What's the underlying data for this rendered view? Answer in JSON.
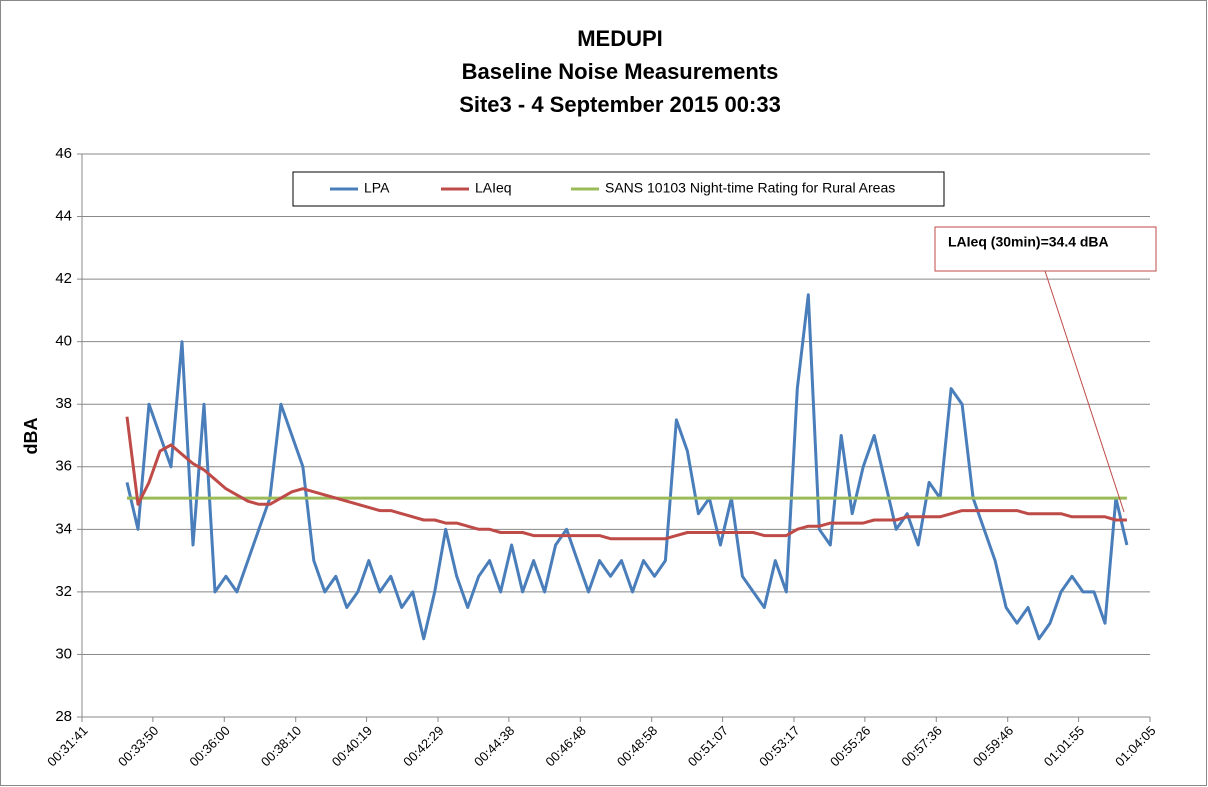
{
  "chart_data": {
    "type": "line",
    "title": [
      "MEDUPI",
      "Baseline Noise Measurements",
      "Site3 - 4 September 2015 00:33"
    ],
    "y_label": "dBA",
    "annotation": "LAIeq (30min)=34.4 dBA",
    "x": [
      "00:33:03",
      "00:33:23",
      "00:33:43",
      "00:34:03",
      "00:34:23",
      "00:34:43",
      "00:35:03",
      "00:35:23",
      "00:35:43",
      "00:36:03",
      "00:36:23",
      "00:36:43",
      "00:37:03",
      "00:37:23",
      "00:37:43",
      "00:38:03",
      "00:38:23",
      "00:38:43",
      "00:39:03",
      "00:39:23",
      "00:39:43",
      "00:40:03",
      "00:40:23",
      "00:40:43",
      "00:41:03",
      "00:41:23",
      "00:41:43",
      "00:42:03",
      "00:42:23",
      "00:42:43",
      "00:43:03",
      "00:43:23",
      "00:43:43",
      "00:44:03",
      "00:44:23",
      "00:44:43",
      "00:45:03",
      "00:45:23",
      "00:45:43",
      "00:46:03",
      "00:46:23",
      "00:46:43",
      "00:47:03",
      "00:47:23",
      "00:47:43",
      "00:48:03",
      "00:48:23",
      "00:48:43",
      "00:49:03",
      "00:49:23",
      "00:49:43",
      "00:50:03",
      "00:50:23",
      "00:50:43",
      "00:51:03",
      "00:51:23",
      "00:51:43",
      "00:52:03",
      "00:52:23",
      "00:52:43",
      "00:53:03",
      "00:53:23",
      "00:53:43",
      "00:54:03",
      "00:54:23",
      "00:54:43",
      "00:55:03",
      "00:55:23",
      "00:55:43",
      "00:56:03",
      "00:56:23",
      "00:56:43",
      "00:57:03",
      "00:57:23",
      "00:57:43",
      "00:58:03",
      "00:58:23",
      "00:58:43",
      "00:59:03",
      "00:59:23",
      "00:59:43",
      "01:00:03",
      "01:00:23",
      "01:00:43",
      "01:01:03",
      "01:01:23",
      "01:01:43",
      "01:02:03",
      "01:02:23",
      "01:02:43",
      "01:03:03",
      "01:03:23"
    ],
    "series": [
      {
        "name": "LPA",
        "color": "#4a7ebb",
        "values": [
          35.5,
          34,
          38,
          37,
          36,
          40,
          33.5,
          38,
          32,
          32.5,
          32,
          33,
          34,
          35,
          38,
          37,
          36,
          33,
          32,
          32.5,
          31.5,
          32,
          33,
          32,
          32.5,
          31.5,
          32,
          30.5,
          32,
          34,
          32.5,
          31.5,
          32.5,
          33,
          32,
          33.5,
          32,
          33,
          32,
          33.5,
          34,
          33,
          32,
          33,
          32.5,
          33,
          32,
          33,
          32.5,
          33,
          37.5,
          36.5,
          34.5,
          35,
          33.5,
          35,
          32.5,
          32,
          31.5,
          33,
          32,
          38.5,
          41.5,
          34,
          33.5,
          37,
          34.5,
          36,
          37,
          35.5,
          34,
          34.5,
          33.5,
          35.5,
          35,
          38.5,
          38,
          35,
          34,
          33,
          31.5,
          31,
          31.5,
          30.5,
          31,
          32,
          32.5,
          32,
          32,
          31,
          35,
          33.5
        ]
      },
      {
        "name": "LAIeq",
        "color": "#be4b48",
        "values": [
          37.6,
          34.8,
          35.5,
          36.5,
          36.7,
          36.4,
          36.1,
          35.9,
          35.6,
          35.3,
          35.1,
          34.9,
          34.8,
          34.8,
          35.0,
          35.2,
          35.3,
          35.2,
          35.1,
          35.0,
          34.9,
          34.8,
          34.7,
          34.6,
          34.6,
          34.5,
          34.4,
          34.3,
          34.3,
          34.2,
          34.2,
          34.1,
          34.0,
          34.0,
          33.9,
          33.9,
          33.9,
          33.8,
          33.8,
          33.8,
          33.8,
          33.8,
          33.8,
          33.8,
          33.7,
          33.7,
          33.7,
          33.7,
          33.7,
          33.7,
          33.8,
          33.9,
          33.9,
          33.9,
          33.9,
          33.9,
          33.9,
          33.9,
          33.8,
          33.8,
          33.8,
          34.0,
          34.1,
          34.1,
          34.2,
          34.2,
          34.2,
          34.2,
          34.3,
          34.3,
          34.3,
          34.4,
          34.4,
          34.4,
          34.4,
          34.5,
          34.6,
          34.6,
          34.6,
          34.6,
          34.6,
          34.6,
          34.5,
          34.5,
          34.5,
          34.5,
          34.4,
          34.4,
          34.4,
          34.4,
          34.3,
          34.3
        ]
      },
      {
        "name": "SANS 10103 Night-time Rating for Rural Areas",
        "color": "#9bbb59",
        "x": [
          "00:33:03",
          "01:03:23"
        ],
        "values": [
          35,
          35
        ]
      }
    ],
    "xlim": [
      "00:31:41",
      "01:04:05"
    ],
    "xticks": [
      "00:31:41",
      "00:33:50",
      "00:36:00",
      "00:38:10",
      "00:40:19",
      "00:42:29",
      "00:44:38",
      "00:46:48",
      "00:48:58",
      "00:51:07",
      "00:53:17",
      "00:55:26",
      "00:57:36",
      "00:59:46",
      "01:01:55",
      "01:04:05"
    ],
    "ylim": [
      28,
      46
    ],
    "yticks": [
      28,
      30,
      32,
      34,
      36,
      38,
      40,
      42,
      44,
      46
    ],
    "grid": true,
    "legend": "top"
  }
}
